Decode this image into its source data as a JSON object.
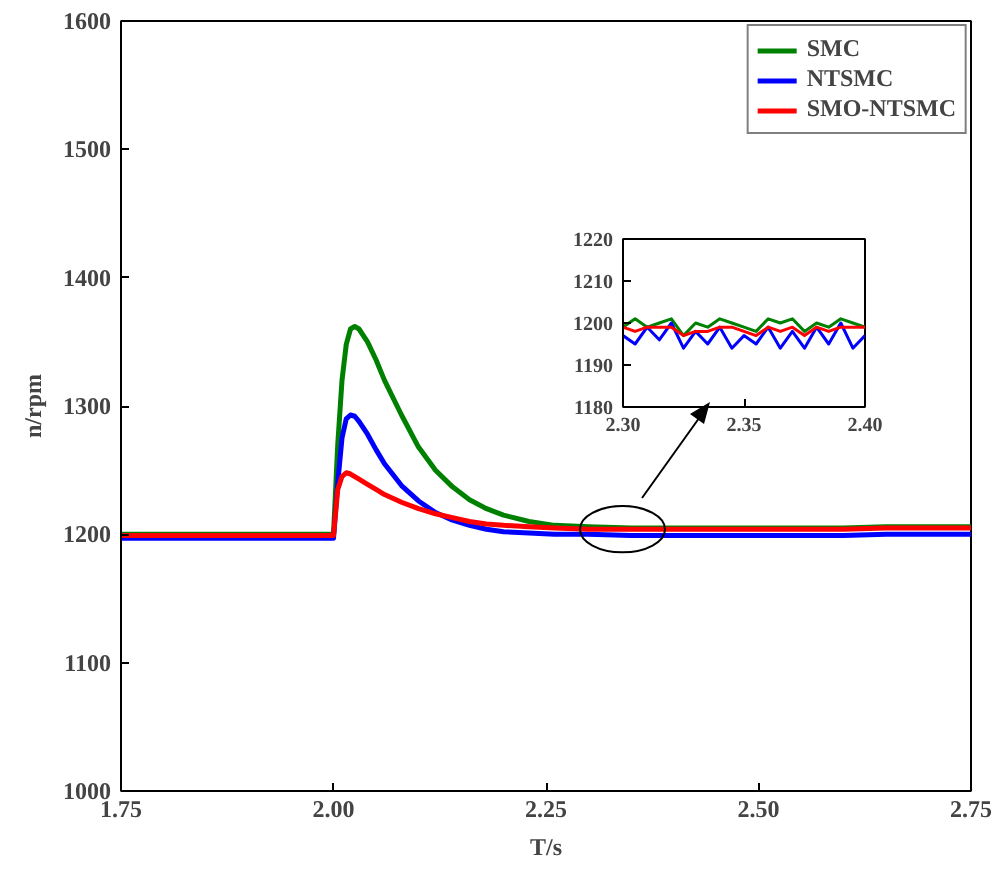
{
  "chart_data": [
    {
      "type": "line",
      "xlabel": "T/s",
      "ylabel": "n/rpm",
      "xlim": [
        1.75,
        2.75
      ],
      "ylim": [
        1000,
        1600
      ],
      "xticks": [
        {
          "value": 1.75,
          "label": "1.75"
        },
        {
          "value": 2.0,
          "label": "2.00"
        },
        {
          "value": 2.25,
          "label": "2.25"
        },
        {
          "value": 2.5,
          "label": "2.50"
        },
        {
          "value": 2.75,
          "label": "2.75"
        }
      ],
      "yticks": [
        1000,
        1100,
        1200,
        1300,
        1400,
        1500,
        1600
      ],
      "grid": false,
      "legend": "top right",
      "line_style": "solid",
      "marker": "none",
      "x": [
        1.75,
        1.8,
        1.85,
        1.9,
        1.95,
        2.0,
        2.005,
        2.01,
        2.015,
        2.02,
        2.025,
        2.03,
        2.04,
        2.05,
        2.06,
        2.08,
        2.1,
        2.12,
        2.14,
        2.16,
        2.18,
        2.2,
        2.23,
        2.26,
        2.3,
        2.35,
        2.4,
        2.45,
        2.5,
        2.55,
        2.6,
        2.65,
        2.7,
        2.75
      ],
      "series": [
        {
          "name": "SMC",
          "color": "#008000",
          "values": [
            1200,
            1200,
            1200,
            1200,
            1200,
            1200,
            1270,
            1320,
            1348,
            1360,
            1362,
            1360,
            1350,
            1336,
            1320,
            1293,
            1268,
            1250,
            1237,
            1227,
            1220,
            1215,
            1210,
            1207,
            1206,
            1205,
            1205,
            1205,
            1205,
            1205,
            1205,
            1206,
            1206,
            1206
          ]
        },
        {
          "name": "NTSMC",
          "color": "#0000ff",
          "values": [
            1197,
            1197,
            1197,
            1197,
            1197,
            1197,
            1240,
            1275,
            1290,
            1293,
            1292,
            1288,
            1278,
            1266,
            1255,
            1238,
            1226,
            1217,
            1211,
            1207,
            1204,
            1202,
            1201,
            1200,
            1200,
            1199,
            1199,
            1199,
            1199,
            1199,
            1199,
            1200,
            1200,
            1200
          ]
        },
        {
          "name": "SMO-NTSMC",
          "color": "#ff0000",
          "values": [
            1199,
            1199,
            1199,
            1199,
            1199,
            1199,
            1235,
            1245,
            1248,
            1247,
            1245,
            1243,
            1239,
            1235,
            1231,
            1225,
            1220,
            1216,
            1213,
            1210,
            1208,
            1207,
            1206,
            1205,
            1204,
            1204,
            1204,
            1204,
            1204,
            1204,
            1204,
            1205,
            1205,
            1205
          ]
        }
      ]
    },
    {
      "type": "line",
      "xlim": [
        2.3,
        2.4
      ],
      "ylim": [
        1180,
        1220
      ],
      "xticks": [
        {
          "value": 2.3,
          "label": "2.30"
        },
        {
          "value": 2.35,
          "label": "2.35"
        },
        {
          "value": 2.4,
          "label": "2.40"
        }
      ],
      "yticks": [
        1180,
        1190,
        1200,
        1210,
        1220
      ],
      "grid": false,
      "line_style": "solid",
      "marker": "none",
      "x": [
        2.3,
        2.305,
        2.31,
        2.315,
        2.32,
        2.325,
        2.33,
        2.335,
        2.34,
        2.345,
        2.35,
        2.355,
        2.36,
        2.365,
        2.37,
        2.375,
        2.38,
        2.385,
        2.39,
        2.395,
        2.4
      ],
      "series": [
        {
          "color": "#008000",
          "values": [
            1199,
            1201,
            1199,
            1200,
            1201,
            1197,
            1200,
            1199,
            1201,
            1200,
            1199,
            1198,
            1201,
            1200,
            1201,
            1198,
            1200,
            1199,
            1201,
            1200,
            1199
          ]
        },
        {
          "color": "#0000ff",
          "values": [
            1197,
            1195,
            1199,
            1196,
            1200,
            1194,
            1198,
            1195,
            1199,
            1194,
            1197,
            1195,
            1199,
            1194,
            1198,
            1194,
            1199,
            1195,
            1200,
            1194,
            1197
          ]
        },
        {
          "color": "#ff0000",
          "values": [
            1199,
            1198,
            1199,
            1199,
            1199,
            1197,
            1198,
            1198,
            1199,
            1199,
            1198,
            1197,
            1199,
            1198,
            1199,
            1197,
            1199,
            1198,
            1199,
            1199,
            1199
          ]
        }
      ]
    }
  ]
}
